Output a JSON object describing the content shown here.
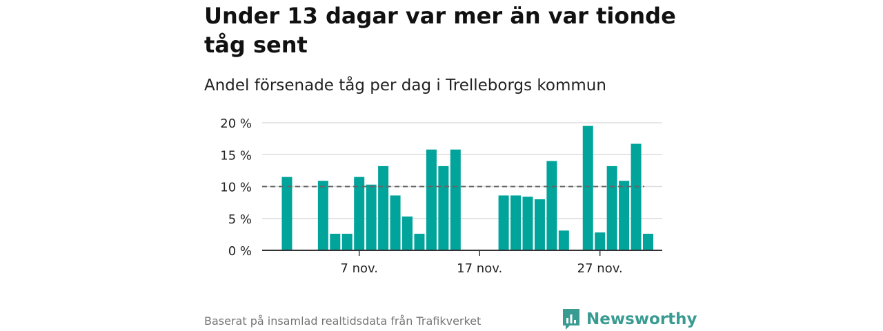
{
  "title": "Under 13 dagar var mer än var tionde tåg sent",
  "subtitle": "Andel försenade tåg per dag i Trelleborgs kommun",
  "source": "Baserat på insamlad realtidsdata från Trafikverket",
  "brand": {
    "name": "Newsworthy",
    "color": "#3a9b92"
  },
  "colors": {
    "bar": "#00a49a",
    "reference": "#666666",
    "grid": "#dddddd",
    "axis": "#333333"
  },
  "chart_data": {
    "type": "bar",
    "x_unit": "day (November)",
    "categories": [
      "1 nov.",
      "2 nov.",
      "3 nov.",
      "4 nov.",
      "5 nov.",
      "6 nov.",
      "7 nov.",
      "8 nov.",
      "9 nov.",
      "10 nov.",
      "11 nov.",
      "12 nov.",
      "13 nov.",
      "14 nov.",
      "15 nov.",
      "16 nov.",
      "17 nov.",
      "18 nov.",
      "19 nov.",
      "20 nov.",
      "21 nov.",
      "22 nov.",
      "23 nov.",
      "24 nov.",
      "25 nov.",
      "26 nov.",
      "27 nov.",
      "28 nov.",
      "29 nov.",
      "30 nov.",
      "1 dec."
    ],
    "values": [
      11.5,
      0,
      0,
      10.9,
      2.6,
      2.6,
      11.5,
      10.3,
      13.2,
      8.6,
      5.3,
      2.6,
      15.8,
      13.2,
      15.8,
      0,
      0,
      0,
      8.6,
      8.6,
      8.4,
      8.0,
      14.0,
      3.1,
      0,
      19.5,
      2.8,
      13.2,
      10.9,
      16.7,
      2.6
    ],
    "reference_line": {
      "value": 10,
      "style": "dashed"
    },
    "xticks": [
      {
        "index": 6,
        "label": "7 nov."
      },
      {
        "index": 16,
        "label": "17 nov."
      },
      {
        "index": 26,
        "label": "27 nov."
      }
    ],
    "yticks": [
      {
        "value": 0,
        "label": "0 %"
      },
      {
        "value": 5,
        "label": "5 %"
      },
      {
        "value": 10,
        "label": "10 %"
      },
      {
        "value": 15,
        "label": "15 %"
      },
      {
        "value": 20,
        "label": "20 %"
      }
    ],
    "ylim": [
      0,
      20
    ],
    "grid": true,
    "legend": "none"
  }
}
